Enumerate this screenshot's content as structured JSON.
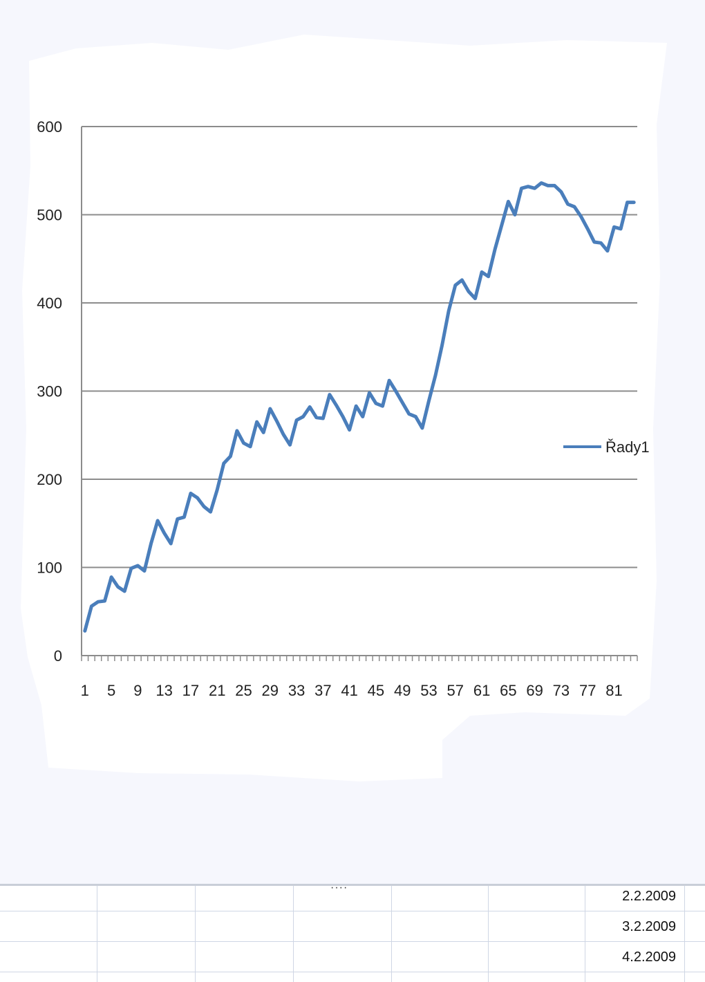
{
  "colors": {
    "series": "#4a7ebb",
    "grid": "#8c8c8c",
    "background": "#ffffff",
    "page": "#f6f7fd"
  },
  "chart_data": {
    "type": "line",
    "title": "",
    "xlabel": "",
    "ylabel": "",
    "ylim": [
      0,
      600
    ],
    "yticks": [
      "0",
      "100",
      "200",
      "300",
      "400",
      "500",
      "600"
    ],
    "xtick_labels": [
      "1",
      "5",
      "9",
      "13",
      "17",
      "21",
      "25",
      "29",
      "33",
      "37",
      "41",
      "45",
      "49",
      "53",
      "57",
      "61",
      "65",
      "69",
      "73",
      "77",
      "81"
    ],
    "grid": true,
    "legend_position": "right",
    "series": [
      {
        "name": "Řady1",
        "x": [
          1,
          2,
          3,
          4,
          5,
          6,
          7,
          8,
          9,
          10,
          11,
          12,
          13,
          14,
          15,
          16,
          17,
          18,
          19,
          20,
          21,
          22,
          23,
          24,
          25,
          26,
          27,
          28,
          29,
          30,
          31,
          32,
          33,
          34,
          35,
          36,
          37,
          38,
          39,
          40,
          41,
          42,
          43,
          44,
          45,
          46,
          47,
          48,
          49,
          50,
          51,
          52,
          53,
          54,
          55,
          56,
          57,
          58,
          59,
          60,
          61,
          62,
          63,
          64,
          65,
          66,
          67,
          68,
          69,
          70,
          71,
          72,
          73,
          74,
          75,
          76,
          77,
          78,
          79,
          80,
          81,
          82,
          83,
          84
        ],
        "values": [
          28,
          56,
          61,
          62,
          89,
          78,
          73,
          99,
          102,
          96,
          127,
          153,
          139,
          127,
          155,
          157,
          184,
          179,
          169,
          163,
          188,
          218,
          226,
          255,
          241,
          237,
          265,
          253,
          280,
          266,
          251,
          239,
          267,
          271,
          282,
          270,
          269,
          296,
          284,
          271,
          256,
          283,
          271,
          298,
          286,
          283,
          312,
          300,
          287,
          274,
          271,
          258,
          289,
          318,
          352,
          391,
          420,
          426,
          413,
          405,
          435,
          430,
          461,
          488,
          515,
          500,
          530,
          532,
          530,
          536,
          533,
          533,
          526,
          512,
          509,
          498,
          484,
          469,
          468,
          459,
          486,
          484,
          514,
          514
        ]
      }
    ]
  },
  "sheet": {
    "dots": "····",
    "dates": [
      "2.2.2009",
      "3.2.2009",
      "4.2.2009"
    ]
  }
}
